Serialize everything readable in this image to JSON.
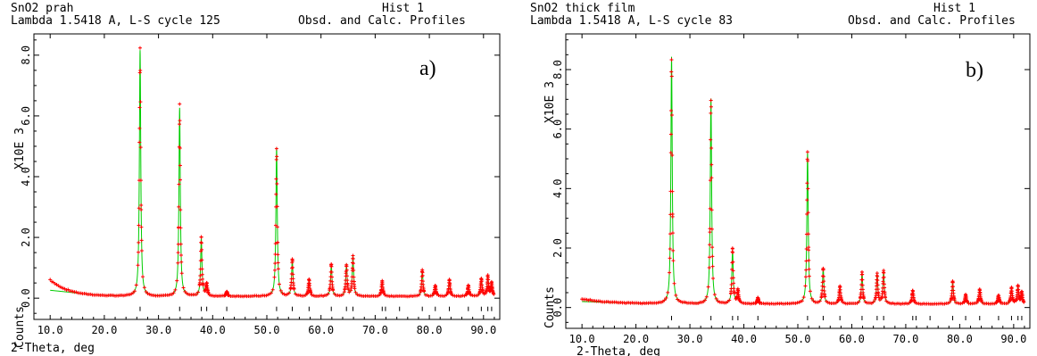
{
  "chart_data": [
    {
      "type": "line",
      "header": {
        "title": "SnO2 prah",
        "hist": "Hist  1",
        "subtitle": "Lambda 1.5418 A, L-S cycle  125",
        "profiles": "Obsd. and Calc. Profiles"
      },
      "panel_label": "a)",
      "xlabel": "2-Theta, deg",
      "ylabel": "Counts",
      "yscale_label": "X10E  3",
      "xlim": [
        7.0,
        93.0
      ],
      "ylim": [
        -0.7,
        8.7
      ],
      "xticks": [
        10,
        20,
        30,
        40,
        50,
        60,
        70,
        80,
        90
      ],
      "xtick_labels": [
        "10.0",
        "20.0",
        "30.0",
        "40.0",
        "50.0",
        "60.0",
        "70.0",
        "80.0",
        "90.0"
      ],
      "yticks": [
        0,
        2,
        4,
        6,
        8
      ],
      "ytick_labels": [
        "0.0",
        "2.0",
        "4.0",
        "6.0",
        "8.0"
      ],
      "background": {
        "type": "decay",
        "base": 0.06,
        "amp": 0.55,
        "x0": 10,
        "rate": 0.3,
        "calc_start": 0.26
      },
      "peaks": [
        {
          "x": 26.6,
          "h": 8.1
        },
        {
          "x": 33.9,
          "h": 6.2
        },
        {
          "x": 37.9,
          "h": 1.9
        },
        {
          "x": 38.9,
          "h": 0.4
        },
        {
          "x": 42.6,
          "h": 0.15
        },
        {
          "x": 51.8,
          "h": 4.9
        },
        {
          "x": 54.7,
          "h": 1.2
        },
        {
          "x": 57.8,
          "h": 0.55
        },
        {
          "x": 61.9,
          "h": 1.05
        },
        {
          "x": 64.7,
          "h": 1.05
        },
        {
          "x": 65.9,
          "h": 1.35
        },
        {
          "x": 71.3,
          "h": 0.5
        },
        {
          "x": 78.7,
          "h": 0.85
        },
        {
          "x": 81.1,
          "h": 0.35
        },
        {
          "x": 83.7,
          "h": 0.55
        },
        {
          "x": 87.2,
          "h": 0.35
        },
        {
          "x": 89.6,
          "h": 0.6
        },
        {
          "x": 90.8,
          "h": 0.65
        },
        {
          "x": 91.5,
          "h": 0.45
        }
      ],
      "reflections": [
        26.6,
        33.9,
        37.9,
        38.9,
        42.6,
        51.8,
        54.7,
        57.8,
        61.9,
        64.7,
        65.9,
        71.3,
        71.9,
        74.5,
        78.7,
        81.1,
        83.7,
        87.2,
        89.6,
        90.8,
        91.5
      ],
      "series_colors": {
        "observed": "#ff0000",
        "calculated": "#00cc00",
        "tick_marks": "#000000"
      }
    },
    {
      "type": "line",
      "header": {
        "title": "SnO2 thick film",
        "hist": "Hist  1",
        "subtitle": "Lambda 1.5418 A, L-S cycle   83",
        "profiles": "Obsd. and Calc. Profiles"
      },
      "panel_label": "b)",
      "xlabel": "2-Theta, deg",
      "ylabel": "Counts",
      "yscale_label": "X10E  3",
      "xlim": [
        7.0,
        93.0
      ],
      "ylim": [
        -0.7,
        9.2
      ],
      "xticks": [
        10,
        20,
        30,
        40,
        50,
        60,
        70,
        80,
        90
      ],
      "xtick_labels": [
        "10.0",
        "20.0",
        "30.0",
        "40.0",
        "50.0",
        "60.0",
        "70.0",
        "80.0",
        "90.0"
      ],
      "yticks": [
        0,
        2,
        4,
        6,
        8
      ],
      "ytick_labels": [
        "0.0",
        "2.0",
        "4.0",
        "6.0",
        "8.0"
      ],
      "background": {
        "type": "decay",
        "base": 0.12,
        "amp": 0.17,
        "x0": 10,
        "rate": 0.2,
        "calc_start": 0.2
      },
      "peaks": [
        {
          "x": 26.6,
          "h": 8.3
        },
        {
          "x": 33.9,
          "h": 6.9
        },
        {
          "x": 37.9,
          "h": 1.8
        },
        {
          "x": 38.9,
          "h": 0.45
        },
        {
          "x": 42.6,
          "h": 0.2
        },
        {
          "x": 51.8,
          "h": 5.1
        },
        {
          "x": 54.7,
          "h": 1.2
        },
        {
          "x": 57.8,
          "h": 0.6
        },
        {
          "x": 61.9,
          "h": 1.05
        },
        {
          "x": 64.7,
          "h": 1.0
        },
        {
          "x": 65.9,
          "h": 1.1
        },
        {
          "x": 71.3,
          "h": 0.45
        },
        {
          "x": 78.7,
          "h": 0.75
        },
        {
          "x": 81.1,
          "h": 0.3
        },
        {
          "x": 83.7,
          "h": 0.5
        },
        {
          "x": 87.2,
          "h": 0.3
        },
        {
          "x": 89.6,
          "h": 0.55
        },
        {
          "x": 90.8,
          "h": 0.6
        },
        {
          "x": 91.5,
          "h": 0.4
        }
      ],
      "reflections": [
        26.6,
        33.9,
        37.9,
        38.9,
        42.6,
        51.8,
        54.7,
        57.8,
        61.9,
        64.7,
        65.9,
        71.3,
        71.9,
        74.5,
        78.7,
        81.1,
        83.7,
        87.2,
        89.6,
        90.8,
        91.5
      ],
      "series_colors": {
        "observed": "#ff0000",
        "calculated": "#00cc00",
        "tick_marks": "#000000"
      }
    }
  ]
}
